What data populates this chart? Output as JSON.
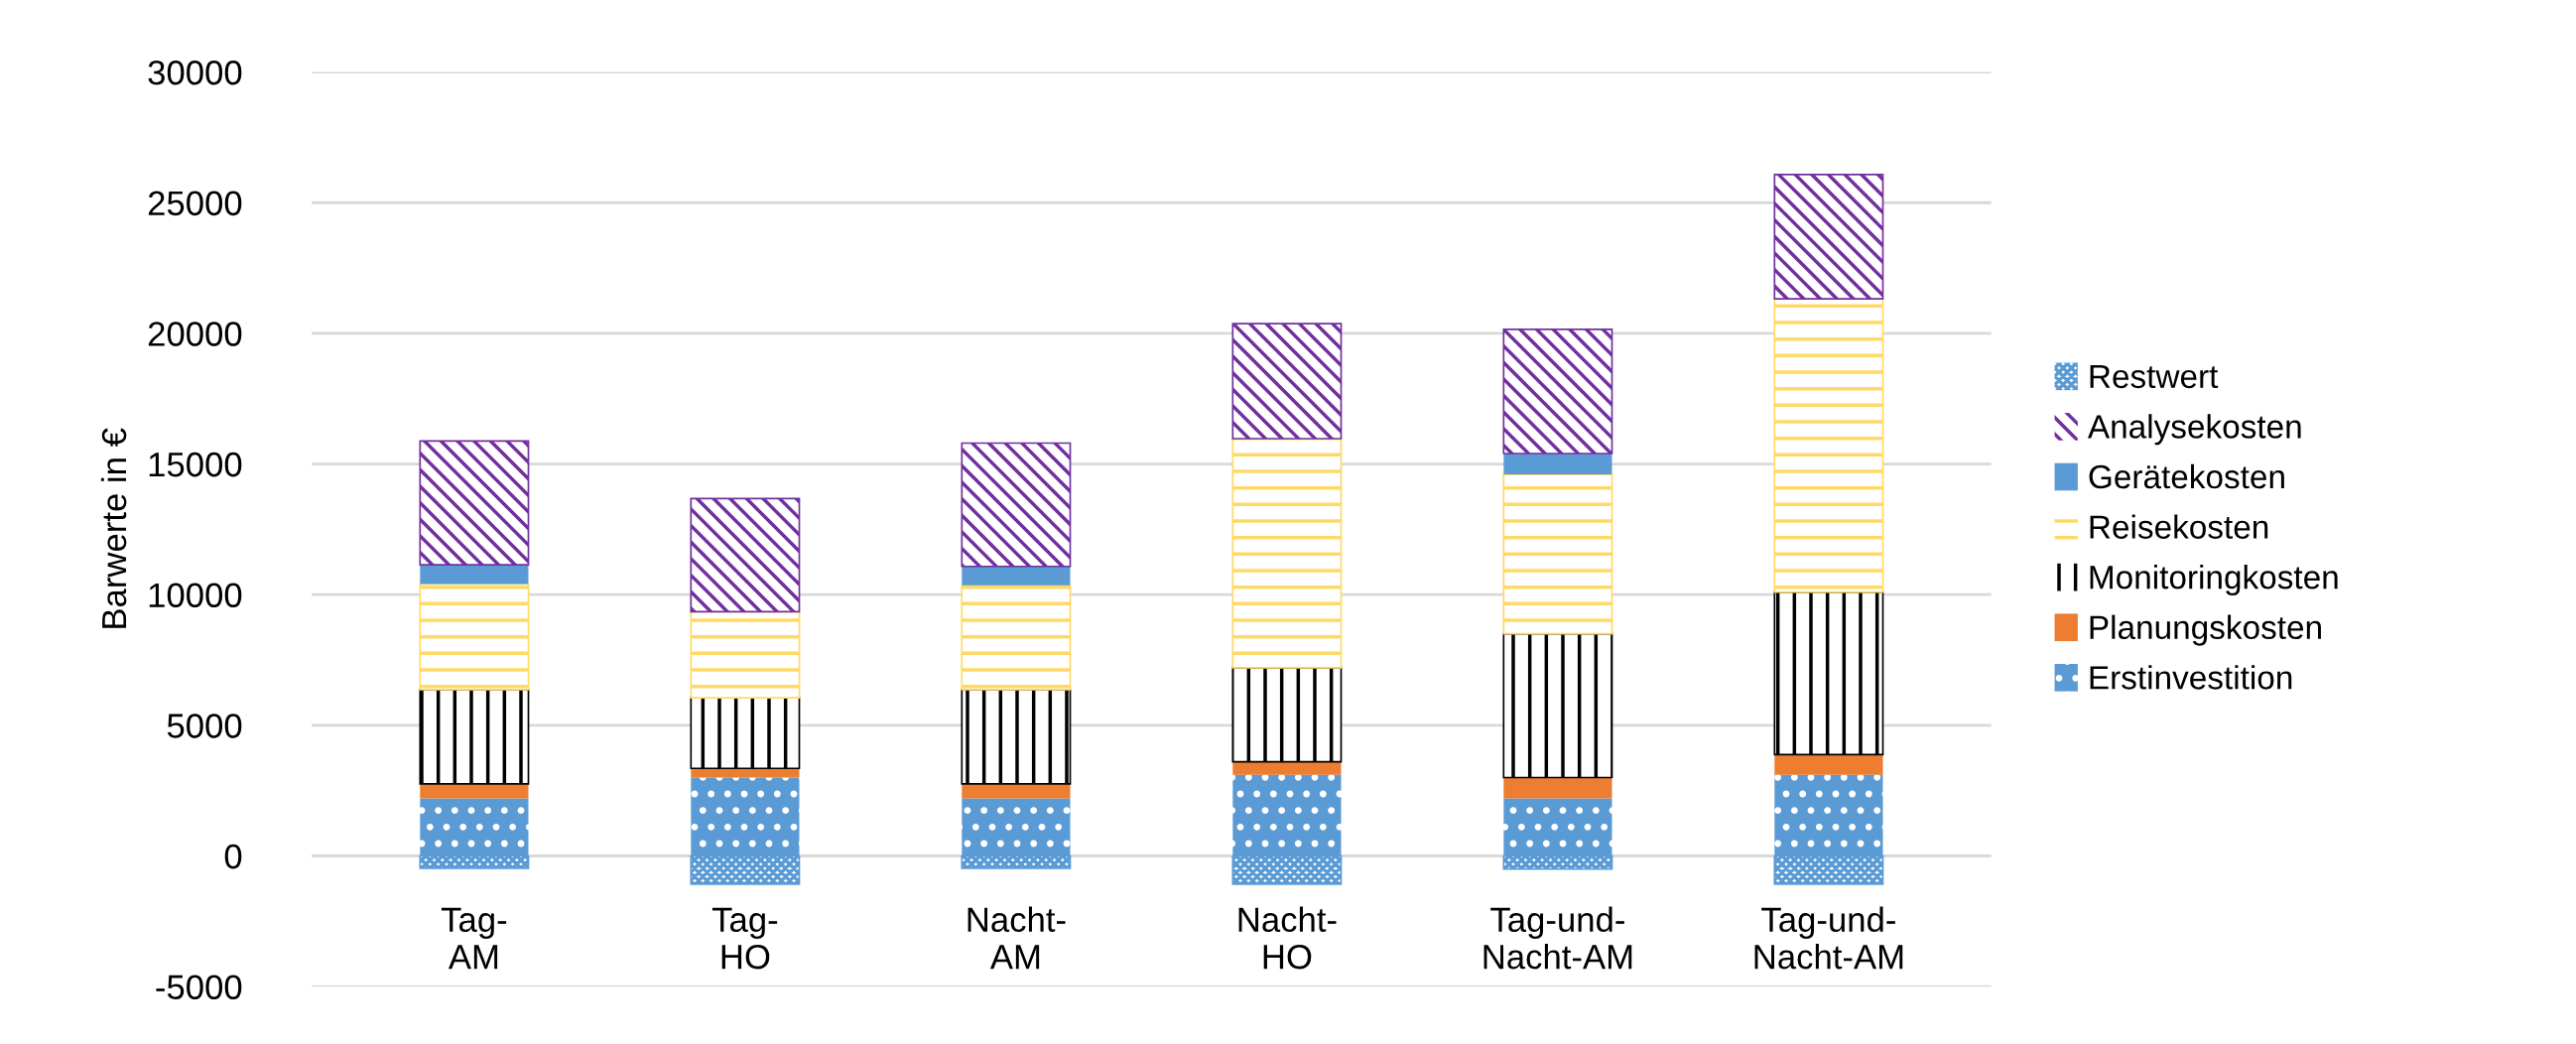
{
  "chart_data": {
    "type": "bar",
    "stacked": true,
    "ylabel": "Barwerte in €",
    "categories": [
      "Tag-\nAM",
      "Tag-\nHO",
      "Nacht-\nAM",
      "Nacht-\nHO",
      "Tag-und-\nNacht-AM",
      "Tag-und-\nNacht-AM"
    ],
    "series": [
      {
        "name": "Erstinvestition",
        "color": "#5b9bd5",
        "values": [
          2200,
          3000,
          2200,
          3100,
          2200,
          3100
        ]
      },
      {
        "name": "Planungskosten",
        "color": "#ed7d31",
        "values": [
          560,
          350,
          560,
          500,
          800,
          780
        ]
      },
      {
        "name": "Monitoringkosten",
        "color": "#000000",
        "values": [
          3600,
          2700,
          3600,
          3600,
          5500,
          6220
        ]
      },
      {
        "name": "Reisekosten",
        "color": "#ffd966",
        "values": [
          4050,
          3300,
          4000,
          8770,
          6100,
          11220
        ]
      },
      {
        "name": "Gerätekosten",
        "color": "#5b9bd5",
        "values": [
          730,
          0,
          720,
          0,
          800,
          0
        ]
      },
      {
        "name": "Analysekosten",
        "color": "#7030a0",
        "values": [
          4740,
          4330,
          4720,
          4400,
          4750,
          4760
        ]
      },
      {
        "name": "Restwert",
        "color": "#5b9bd5",
        "values": [
          -470,
          -1080,
          -470,
          -1080,
          -500,
          -1080
        ]
      }
    ],
    "ylim": [
      -5000,
      30000
    ],
    "yticks": [
      -5000,
      0,
      5000,
      10000,
      15000,
      20000,
      25000,
      30000
    ],
    "grid": "y",
    "legend": "right"
  }
}
